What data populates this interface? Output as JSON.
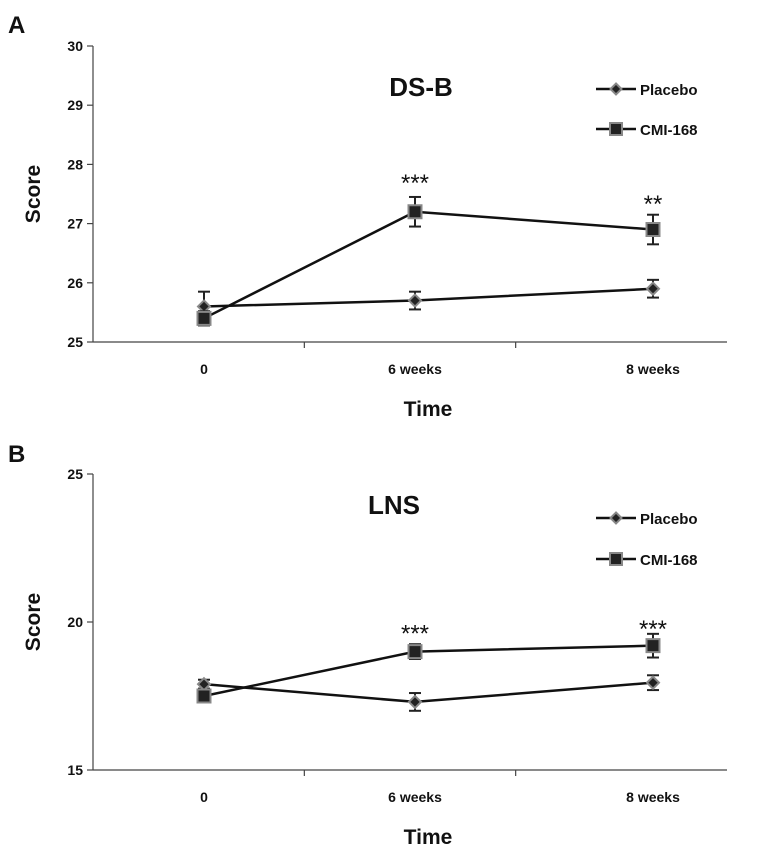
{
  "chart_data": [
    {
      "panel": "A",
      "type": "line",
      "title": "DS-B",
      "xlabel": "Time",
      "ylabel": "Score",
      "categories": [
        "0",
        "6 weeks",
        "8 weeks"
      ],
      "ylim": [
        25,
        30
      ],
      "yticks": [
        "25",
        "26",
        "27",
        "28",
        "29",
        "30"
      ],
      "legend_position": "top-right",
      "series": [
        {
          "name": "Placebo",
          "marker": "diamond",
          "values": [
            25.6,
            25.7,
            25.9
          ],
          "errors": [
            0.25,
            0.15,
            0.15
          ]
        },
        {
          "name": "CMI-168",
          "marker": "square",
          "values": [
            25.4,
            27.2,
            26.9
          ],
          "errors": [
            0.12,
            0.25,
            0.25
          ]
        }
      ],
      "annotations": [
        {
          "category": "6 weeks",
          "text": "***",
          "y": 27.75
        },
        {
          "category": "8 weeks",
          "text": "**",
          "y": 27.4
        }
      ]
    },
    {
      "panel": "B",
      "type": "line",
      "title": "LNS",
      "xlabel": "Time",
      "ylabel": "Score",
      "categories": [
        "0",
        "6 weeks",
        "8 weeks"
      ],
      "ylim": [
        15,
        25
      ],
      "yticks": [
        "15",
        "20",
        "25"
      ],
      "legend_position": "top-right",
      "series": [
        {
          "name": "Placebo",
          "marker": "diamond",
          "values": [
            17.9,
            17.3,
            17.95
          ],
          "errors": [
            0.15,
            0.3,
            0.25
          ]
        },
        {
          "name": "CMI-168",
          "marker": "square",
          "values": [
            17.5,
            19.0,
            19.2
          ],
          "errors": [
            0.2,
            0.25,
            0.4
          ]
        }
      ],
      "annotations": [
        {
          "category": "6 weeks",
          "text": "***",
          "y": 19.75
        },
        {
          "category": "8 weeks",
          "text": "***",
          "y": 19.9
        }
      ]
    }
  ]
}
